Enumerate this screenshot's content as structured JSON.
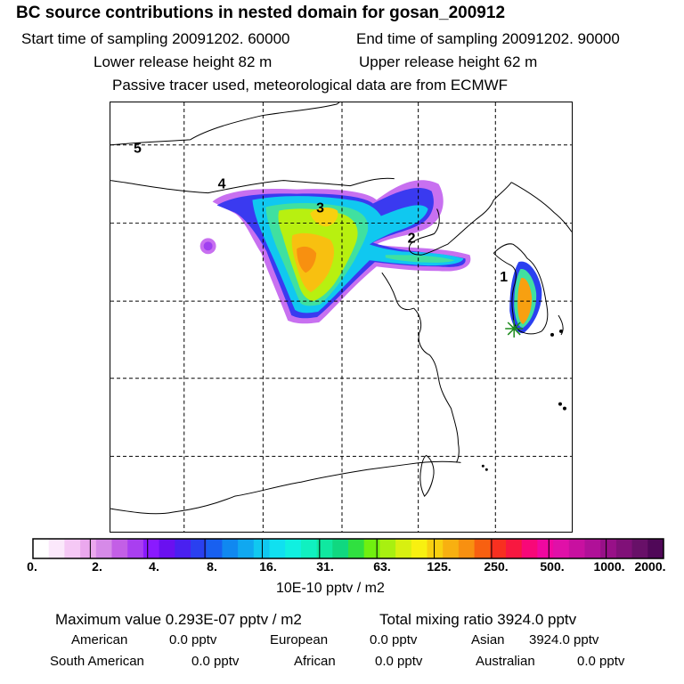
{
  "title": "BC  source contributions in nested domain for gosan_200912",
  "header": {
    "start": "Start time of sampling 20091202. 60000",
    "end": "End time of sampling 20091202. 90000",
    "lower": "Lower release height   82 m",
    "upper": "Upper release height   62 m",
    "tracer": "Passive tracer used, meteorological data are from ECMWF"
  },
  "map": {
    "labels": [
      "1",
      "2",
      "3",
      "4",
      "5"
    ]
  },
  "colorbar": {
    "ticks": [
      "0.",
      "2.",
      "4.",
      "8.",
      "16.",
      "31.",
      "63.",
      "125.",
      "250.",
      "500.",
      "1000.",
      "2000."
    ],
    "unit": "10E-10 pptv / m2",
    "colors": [
      "#ffffff",
      "#fbe8fb",
      "#f5c8f5",
      "#eba8ee",
      "#d68ae8",
      "#c35fe6",
      "#a93ff0",
      "#8a1aff",
      "#6a10f0",
      "#4a20f0",
      "#2a40f0",
      "#1860f0",
      "#1088f0",
      "#10a8f0",
      "#10c8f0",
      "#10e0f0",
      "#10f0e0",
      "#10f0c0",
      "#10e8a0",
      "#10d880",
      "#30e040",
      "#70f010",
      "#a8f010",
      "#d8f010",
      "#f8f010",
      "#f8d010",
      "#f8b010",
      "#f89010",
      "#f86010",
      "#f83020",
      "#f81840",
      "#f80878",
      "#f008a0",
      "#e010a8",
      "#c810a0",
      "#b01098",
      "#981088",
      "#801078",
      "#681068",
      "#500858"
    ]
  },
  "summary": {
    "max": "Maximum value  0.293E-07 pptv / m2",
    "total": "Total mixing ratio     3924.0 pptv",
    "american_label": "American",
    "american_value": "0.0 pptv",
    "european_label": "European",
    "european_value": "0.0 pptv",
    "asian_label": "Asian",
    "asian_value": "3924.0 pptv",
    "southamerican_label": "South American",
    "southamerican_value": "0.0 pptv",
    "african_label": "African",
    "african_value": "0.0 pptv",
    "australian_label": "Australian",
    "australian_value": "0.0 pptv"
  }
}
